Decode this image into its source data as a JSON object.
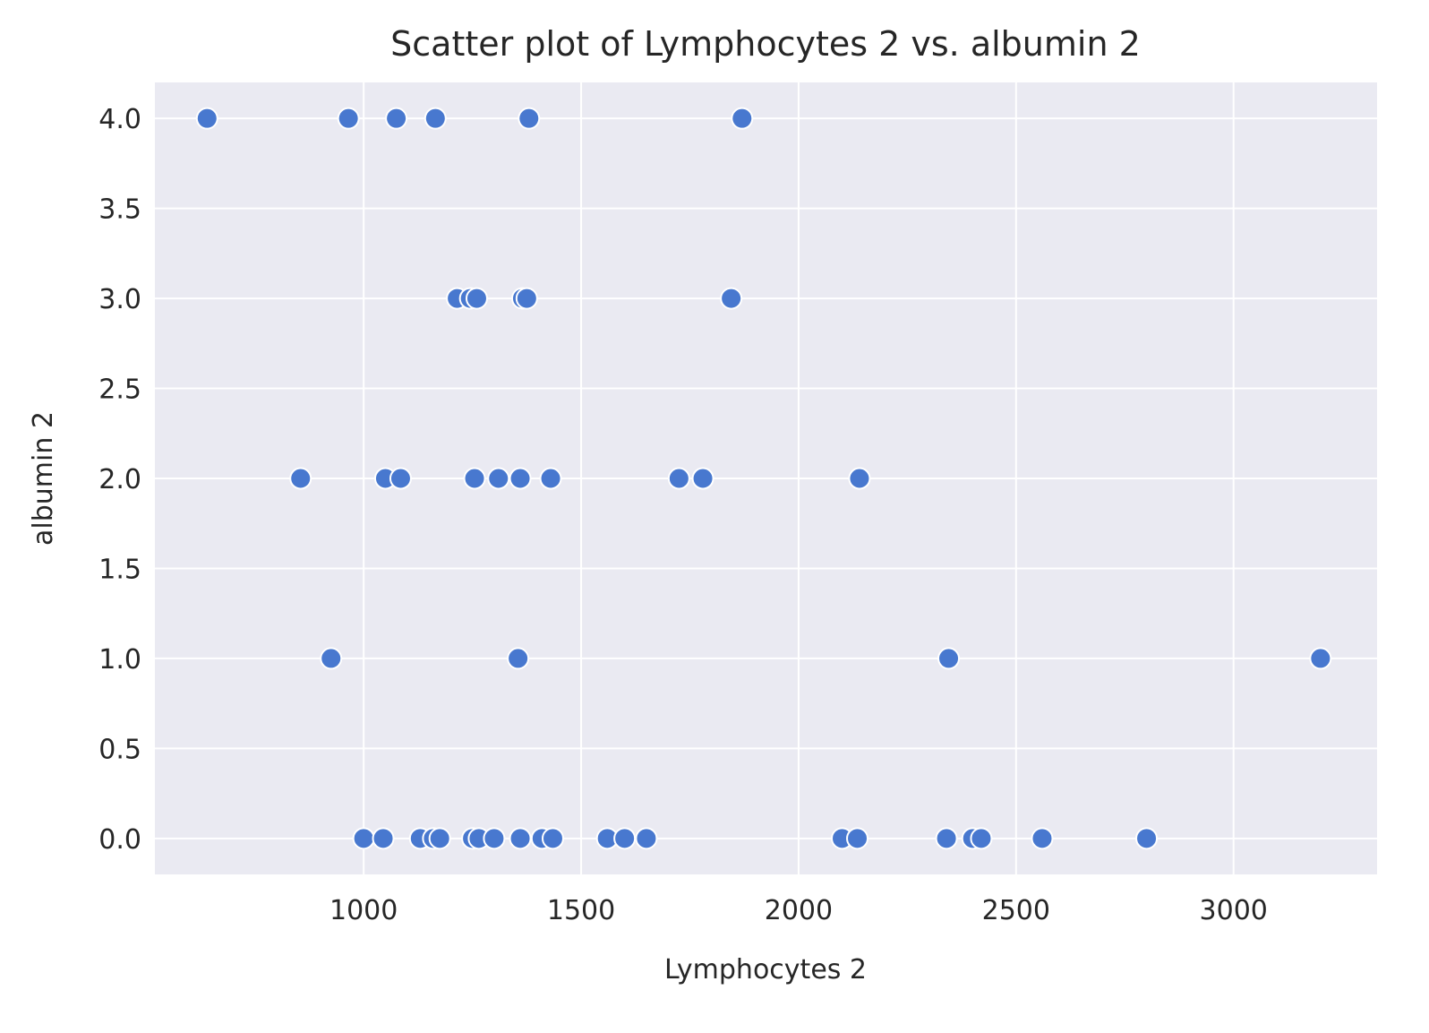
{
  "chart_data": {
    "type": "scatter",
    "title": "Scatter plot of Lymphocytes 2 vs. albumin 2",
    "xlabel": "Lymphocytes 2",
    "ylabel": "albumin 2",
    "xlim": [
      520,
      3330
    ],
    "ylim": [
      -0.2,
      4.2
    ],
    "xticks": [
      1000,
      1500,
      2000,
      2500,
      3000
    ],
    "yticks": [
      0.0,
      0.5,
      1.0,
      1.5,
      2.0,
      2.5,
      3.0,
      3.5,
      4.0
    ],
    "xtick_labels": [
      "1000",
      "1500",
      "2000",
      "2500",
      "3000"
    ],
    "ytick_labels": [
      "0.0",
      "0.5",
      "1.0",
      "1.5",
      "2.0",
      "2.5",
      "3.0",
      "3.5",
      "4.0"
    ],
    "grid": true,
    "background": "#eaeaf2",
    "grid_color": "#ffffff",
    "marker_color": "#4878cf",
    "marker_edge_color": "#ffffff",
    "points": [
      {
        "x": 640,
        "y": 4
      },
      {
        "x": 965,
        "y": 4
      },
      {
        "x": 1075,
        "y": 4
      },
      {
        "x": 1165,
        "y": 4
      },
      {
        "x": 1380,
        "y": 4
      },
      {
        "x": 1870,
        "y": 4
      },
      {
        "x": 1215,
        "y": 3
      },
      {
        "x": 1245,
        "y": 3
      },
      {
        "x": 1260,
        "y": 3
      },
      {
        "x": 1365,
        "y": 3
      },
      {
        "x": 1375,
        "y": 3
      },
      {
        "x": 1845,
        "y": 3
      },
      {
        "x": 855,
        "y": 2
      },
      {
        "x": 1050,
        "y": 2
      },
      {
        "x": 1085,
        "y": 2
      },
      {
        "x": 1255,
        "y": 2
      },
      {
        "x": 1310,
        "y": 2
      },
      {
        "x": 1360,
        "y": 2
      },
      {
        "x": 1430,
        "y": 2
      },
      {
        "x": 1725,
        "y": 2
      },
      {
        "x": 1780,
        "y": 2
      },
      {
        "x": 2140,
        "y": 2
      },
      {
        "x": 925,
        "y": 1
      },
      {
        "x": 1355,
        "y": 1
      },
      {
        "x": 2345,
        "y": 1
      },
      {
        "x": 3200,
        "y": 1
      },
      {
        "x": 1000,
        "y": 0
      },
      {
        "x": 1045,
        "y": 0
      },
      {
        "x": 1130,
        "y": 0
      },
      {
        "x": 1160,
        "y": 0
      },
      {
        "x": 1175,
        "y": 0
      },
      {
        "x": 1250,
        "y": 0
      },
      {
        "x": 1265,
        "y": 0
      },
      {
        "x": 1300,
        "y": 0
      },
      {
        "x": 1360,
        "y": 0
      },
      {
        "x": 1410,
        "y": 0
      },
      {
        "x": 1435,
        "y": 0
      },
      {
        "x": 1560,
        "y": 0
      },
      {
        "x": 1600,
        "y": 0
      },
      {
        "x": 1650,
        "y": 0
      },
      {
        "x": 2100,
        "y": 0
      },
      {
        "x": 2135,
        "y": 0
      },
      {
        "x": 2340,
        "y": 0
      },
      {
        "x": 2400,
        "y": 0
      },
      {
        "x": 2420,
        "y": 0
      },
      {
        "x": 2560,
        "y": 0
      },
      {
        "x": 2800,
        "y": 0
      }
    ]
  }
}
